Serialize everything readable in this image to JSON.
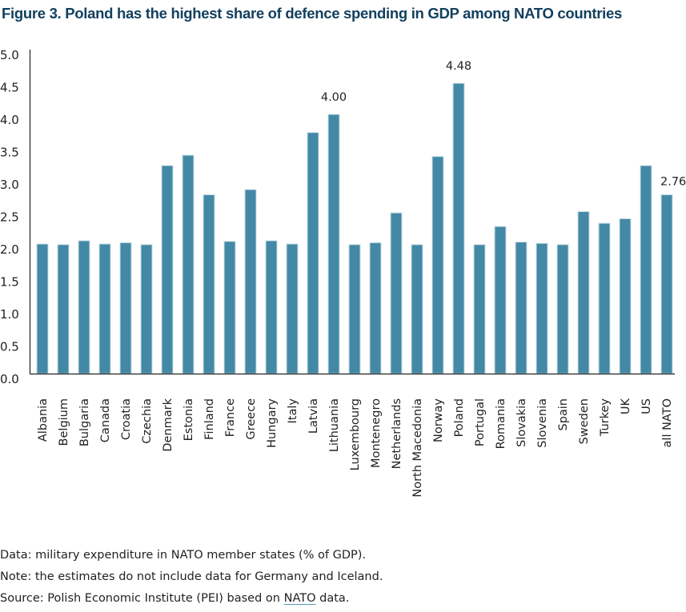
{
  "title": "Figure 3.   Poland has the highest share of defence spending in GDP among NATO countries",
  "chart_data": {
    "type": "bar",
    "title": "Figure 3. Poland has the highest share of defence spending in GDP among NATO countries",
    "xlabel": "",
    "ylabel": "",
    "ylim": [
      0,
      5
    ],
    "yticks": [
      "0.0",
      "0.5",
      "1.0",
      "1.5",
      "2.0",
      "2.5",
      "3.0",
      "3.5",
      "4.0",
      "4.5",
      "5.0"
    ],
    "grid": false,
    "legend": "none",
    "bar_color": "#4389a6",
    "categories": [
      "Albania",
      "Belgium",
      "Bulgaria",
      "Canada",
      "Croatia",
      "Czechia",
      "Denmark",
      "Estonia",
      "Finland",
      "France",
      "Greece",
      "Hungary",
      "Italy",
      "Latvia",
      "Lithuania",
      "Luxembourg",
      "Montenegro",
      "Netherlands",
      "North Macedonia",
      "Norway",
      "Poland",
      "Portugal",
      "Romania",
      "Slovakia",
      "Slovenia",
      "Spain",
      "Sweden",
      "Turkey",
      "UK",
      "US",
      "all NATO"
    ],
    "values": [
      2.0,
      1.99,
      2.05,
      2.0,
      2.02,
      1.99,
      3.21,
      3.37,
      2.76,
      2.04,
      2.84,
      2.05,
      2.0,
      3.72,
      4.0,
      1.99,
      2.02,
      2.48,
      1.99,
      3.35,
      4.48,
      1.99,
      2.27,
      2.03,
      2.01,
      1.99,
      2.5,
      2.32,
      2.39,
      3.21,
      2.76
    ],
    "data_labels": [
      {
        "category": "Lithuania",
        "text": "4.00"
      },
      {
        "category": "Poland",
        "text": "4.48"
      },
      {
        "category": "all NATO",
        "text": "2.76"
      }
    ]
  },
  "notes": {
    "data": "Data: military expenditure in NATO member states (% of GDP).",
    "note": "Note: the estimates do not include data for Germany and Iceland.",
    "source_prefix": "Source: Polish Economic Institute (PEI) based on ",
    "source_link": "NATO",
    "source_suffix": " data."
  }
}
